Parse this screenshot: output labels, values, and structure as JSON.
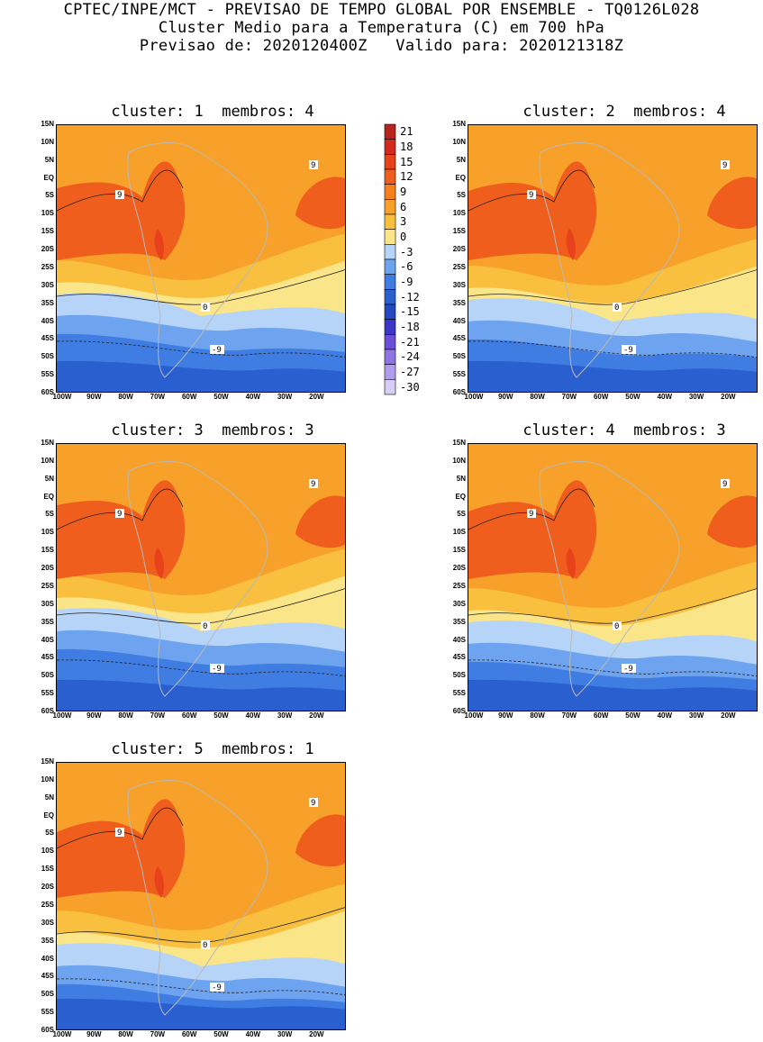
{
  "header": {
    "line1": "CPTEC/INPE/MCT - PREVISAO DE TEMPO GLOBAL POR ENSEMBLE - TQ0126L028",
    "line2": "Cluster Medio para a Temperatura (C) em 700 hPa",
    "line3": "Previsao de: 2020120400Z   Valido para: 2020121318Z"
  },
  "axes": {
    "lat_labels": [
      "15N",
      "10N",
      "5N",
      "EQ",
      "5S",
      "10S",
      "15S",
      "20S",
      "25S",
      "30S",
      "35S",
      "40S",
      "45S",
      "50S",
      "55S",
      "60S"
    ],
    "lon_labels": [
      "100W",
      "90W",
      "80W",
      "70W",
      "60W",
      "50W",
      "40W",
      "30W",
      "20W"
    ]
  },
  "colorbar": {
    "labels": [
      "21",
      "18",
      "15",
      "12",
      "9",
      "6",
      "3",
      "0",
      "-3",
      "-6",
      "-9",
      "-12",
      "-15",
      "-18",
      "-21",
      "-24",
      "-27",
      "-30"
    ],
    "colors": [
      "#b8241c",
      "#d42a1c",
      "#e8421c",
      "#f05e1e",
      "#f77f1e",
      "#f7a12a",
      "#f9c040",
      "#fbe589",
      "#b6d4f7",
      "#6ea4ef",
      "#3f7de3",
      "#2a5fd0",
      "#2348c2",
      "#3b36c8",
      "#6a4fd8",
      "#8f75e2",
      "#b19ded",
      "#d8cdf6"
    ]
  },
  "panels": [
    {
      "title": "cluster: 1  membros: 4",
      "contours": {
        "c9": "9",
        "c0": "0",
        "cm9": "-9"
      }
    },
    {
      "title": "cluster: 2  membros: 4",
      "contours": {
        "c9": "9",
        "c0": "0",
        "cm9": "-9"
      }
    },
    {
      "title": "cluster: 3  membros: 3",
      "contours": {
        "c9": "9",
        "c0": "0",
        "cm9": "-9"
      }
    },
    {
      "title": "cluster: 4  membros: 3",
      "contours": {
        "c9": "9",
        "c0": "0",
        "cm9": "-9"
      }
    },
    {
      "title": "cluster: 5  membros: 1",
      "contours": {
        "c9": "9",
        "c0": "0",
        "cm9": "-9"
      }
    }
  ]
}
